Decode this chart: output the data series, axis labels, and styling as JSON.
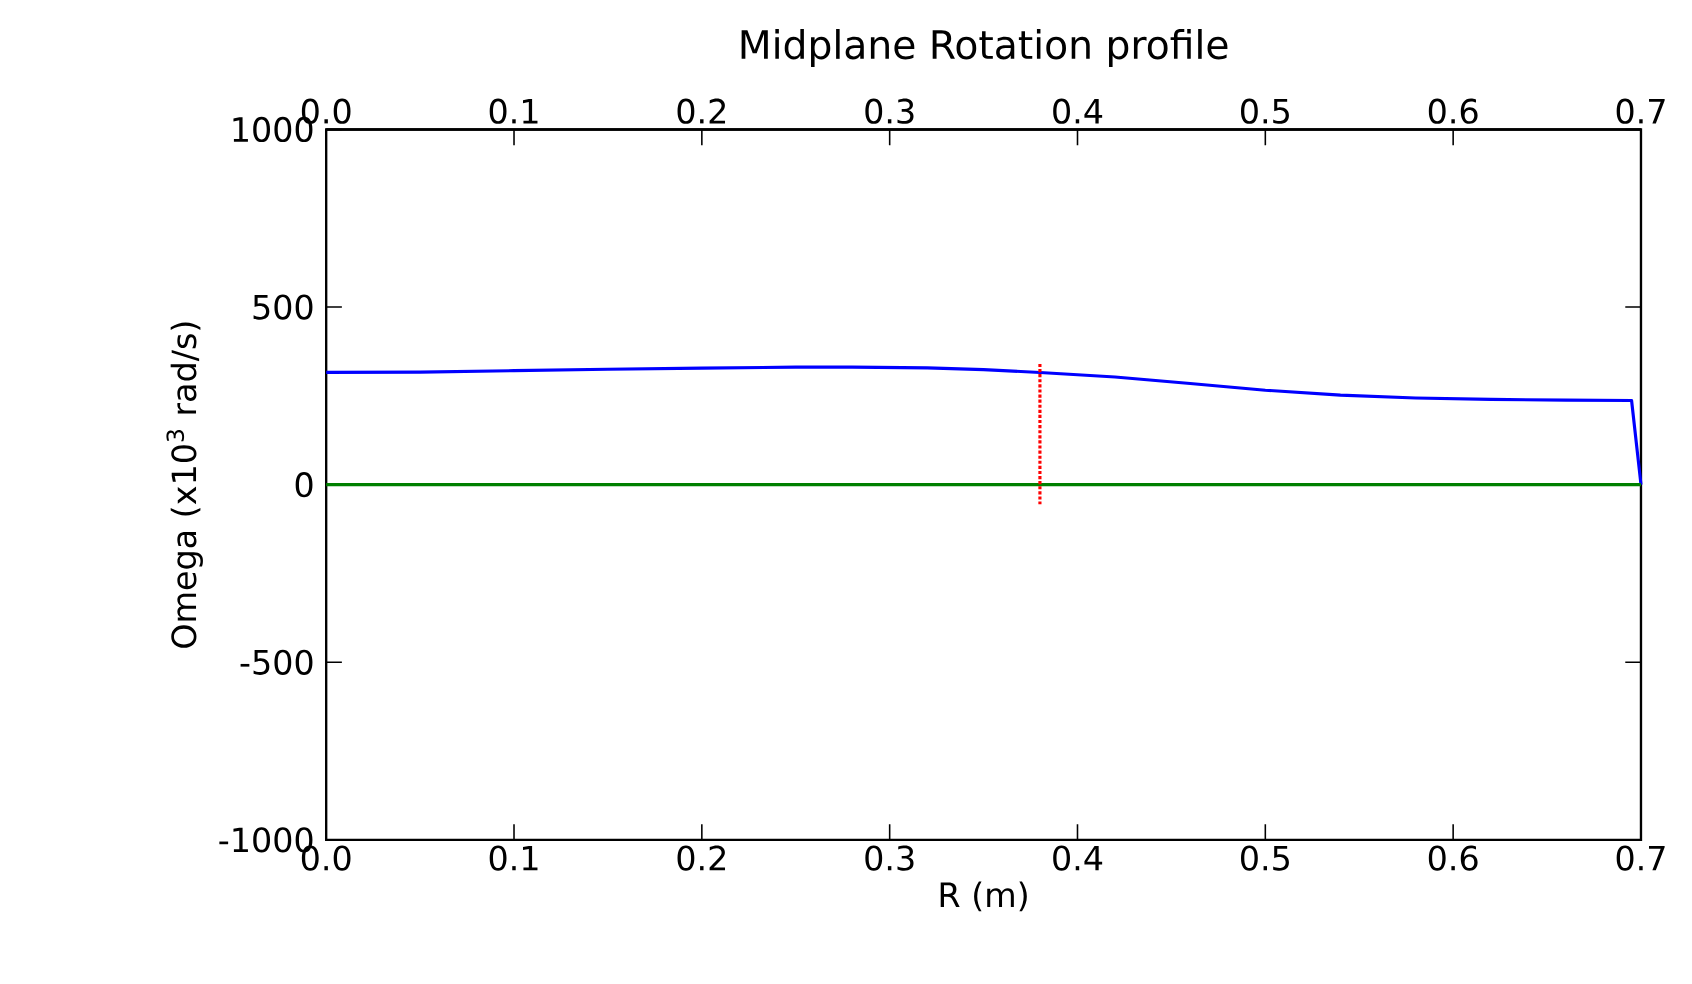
{
  "chart_data": {
    "type": "line",
    "title": "Midplane Rotation profile",
    "xlabel": "R (m)",
    "ylabel": "Omega (x10$^{3}$  rad/s)",
    "xlim": [
      0,
      0.7
    ],
    "ylim": [
      -1000,
      1000
    ],
    "xticks": [
      {
        "value": 0,
        "label": "0.0"
      },
      {
        "value": 0.1,
        "label": "0.1"
      },
      {
        "value": 0.2,
        "label": "0.2"
      },
      {
        "value": 0.3,
        "label": "0.3"
      },
      {
        "value": 0.4,
        "label": "0.4"
      },
      {
        "value": 0.5,
        "label": "0.5"
      },
      {
        "value": 0.6,
        "label": "0.6"
      },
      {
        "value": 0.7,
        "label": "0.7"
      }
    ],
    "x2lim": [
      0,
      0.7
    ],
    "x2ticks": [
      {
        "value": 0,
        "label": "0.0"
      },
      {
        "value": 0.1,
        "label": "0.1"
      },
      {
        "value": 0.2,
        "label": "0.2"
      },
      {
        "value": 0.3,
        "label": "0.3"
      },
      {
        "value": 0.4,
        "label": "0.4"
      },
      {
        "value": 0.5,
        "label": "0.5"
      },
      {
        "value": 0.6,
        "label": "0.6"
      },
      {
        "value": 0.7,
        "label": "0.7"
      }
    ],
    "yticks": [
      -1000,
      -500,
      0,
      500,
      1000
    ],
    "series": [
      {
        "color": "#0000ff",
        "line_style": "solid",
        "x": [
          0,
          0.05,
          0.1,
          0.15,
          0.2,
          0.25,
          0.28,
          0.32,
          0.35,
          0.38,
          0.42,
          0.46,
          0.5,
          0.54,
          0.58,
          0.62,
          0.66,
          0.695,
          0.7
        ],
        "values": [
          316,
          317,
          321,
          325,
          328,
          331,
          331,
          329,
          324,
          316,
          303,
          285,
          266,
          252,
          244,
          240,
          238,
          237,
          0
        ]
      },
      {
        "color": "#008000",
        "line_style": "solid",
        "x": [
          0,
          0.7
        ],
        "values": [
          0,
          0
        ]
      },
      {
        "color": "#ff0000",
        "line_style": "dotted",
        "x": [
          0.38,
          0.38
        ],
        "values": [
          340,
          -55
        ]
      }
    ]
  }
}
